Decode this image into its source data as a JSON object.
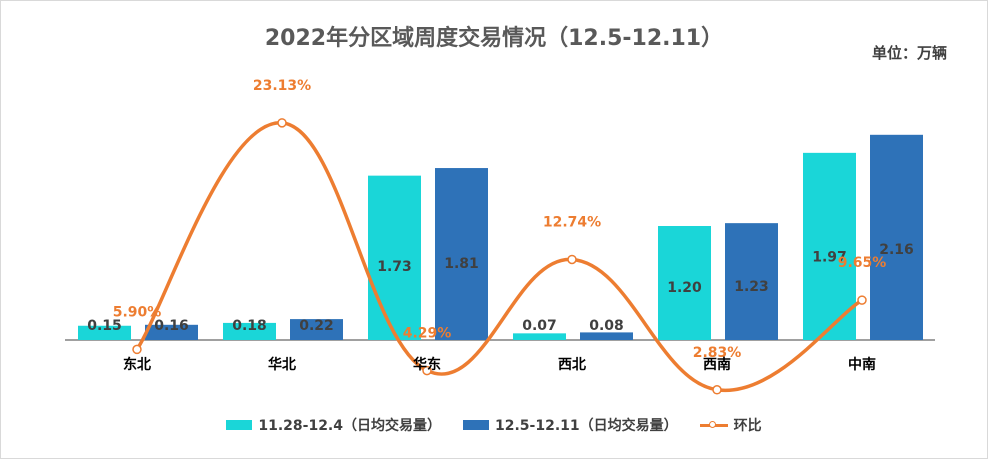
{
  "title": "2022年分区域周度交易情况（12.5-12.11）",
  "unit": "单位：万辆",
  "colors": {
    "series1": "#1ad6d8",
    "series2": "#2e72b8",
    "line": "#ed7d31",
    "axis": "#808080"
  },
  "chart_data": {
    "type": "bar",
    "categories": [
      "东北",
      "华北",
      "华东",
      "西北",
      "西南",
      "中南"
    ],
    "series": [
      {
        "name": "11.28-12.4（日均交易量）",
        "type": "bar",
        "values": [
          0.15,
          0.18,
          1.73,
          0.07,
          1.2,
          1.97
        ],
        "labels": [
          "0.15",
          "0.18",
          "1.73",
          "0.07",
          "1.20",
          "1.97"
        ]
      },
      {
        "name": "12.5-12.11（日均交易量）",
        "type": "bar",
        "values": [
          0.16,
          0.22,
          1.81,
          0.08,
          1.23,
          2.16
        ],
        "labels": [
          "0.16",
          "0.22",
          "1.81",
          "0.08",
          "1.23",
          "2.16"
        ]
      },
      {
        "name": "环比",
        "type": "line",
        "values": [
          5.9,
          23.13,
          4.29,
          12.74,
          2.83,
          9.65
        ],
        "labels": [
          "5.90%",
          "23.13%",
          "4.29%",
          "12.74%",
          "2.83%",
          "9.65%"
        ]
      }
    ],
    "bar_ylim": [
      0,
      2.2
    ],
    "line_ylim": [
      0,
      25
    ],
    "grid": false,
    "legend_position": "bottom"
  },
  "legend": [
    {
      "label": "11.28-12.4（日均交易量）"
    },
    {
      "label": "12.5-12.11（日均交易量）"
    },
    {
      "label": "环比"
    }
  ]
}
